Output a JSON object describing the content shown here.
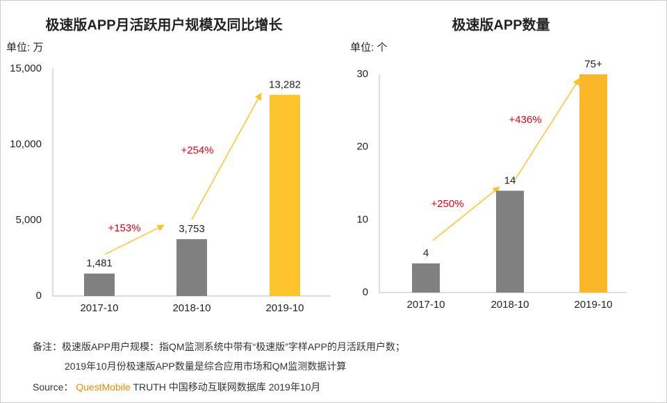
{
  "chart_data": [
    {
      "type": "bar",
      "title": "极速版APP月活跃用户规模及同比增长",
      "unit_label": "单位: 万",
      "categories": [
        "2017-10",
        "2018-10",
        "2019-10"
      ],
      "values": [
        1481,
        3753,
        13282
      ],
      "value_labels": [
        "1,481",
        "3,753",
        "13,282"
      ],
      "colors": [
        "#808080",
        "#808080",
        "#fcc42c"
      ],
      "ylim": [
        0,
        15000
      ],
      "yticks": [
        0,
        {
          "value": 5000,
          "label": "5,000"
        },
        {
          "value": 10000,
          "label": "10,000"
        },
        {
          "value": 15000,
          "label": "15,000"
        }
      ],
      "grid": false,
      "annotations": [
        "+153%",
        "+254%"
      ]
    },
    {
      "type": "bar",
      "title": "极速版APP数量",
      "unit_label": "单位: 个",
      "categories": [
        "2017-10",
        "2018-10",
        "2019-10"
      ],
      "values": [
        4,
        14,
        75
      ],
      "value_labels": [
        "4",
        "14",
        "75+"
      ],
      "colors": [
        "#808080",
        "#808080",
        "#fbb72a"
      ],
      "ylim": [
        0,
        30
      ],
      "yticks": [
        0,
        10,
        20,
        30
      ],
      "grid": false,
      "annotations": [
        "+250%",
        "+436%"
      ]
    }
  ],
  "notes": {
    "label": "备注：",
    "lines": [
      "极速版APP用户规模：指QM监测系统中带有“极速版”字样APP的月活跃用户数；",
      "2019年10月份极速版APP数量是综合应用市场和QM监测数据计算"
    ]
  },
  "source": {
    "label": "Source：",
    "brand": "QuestMobile",
    "text": "TRUTH 中国移动互联网数据库 2019年10月"
  }
}
